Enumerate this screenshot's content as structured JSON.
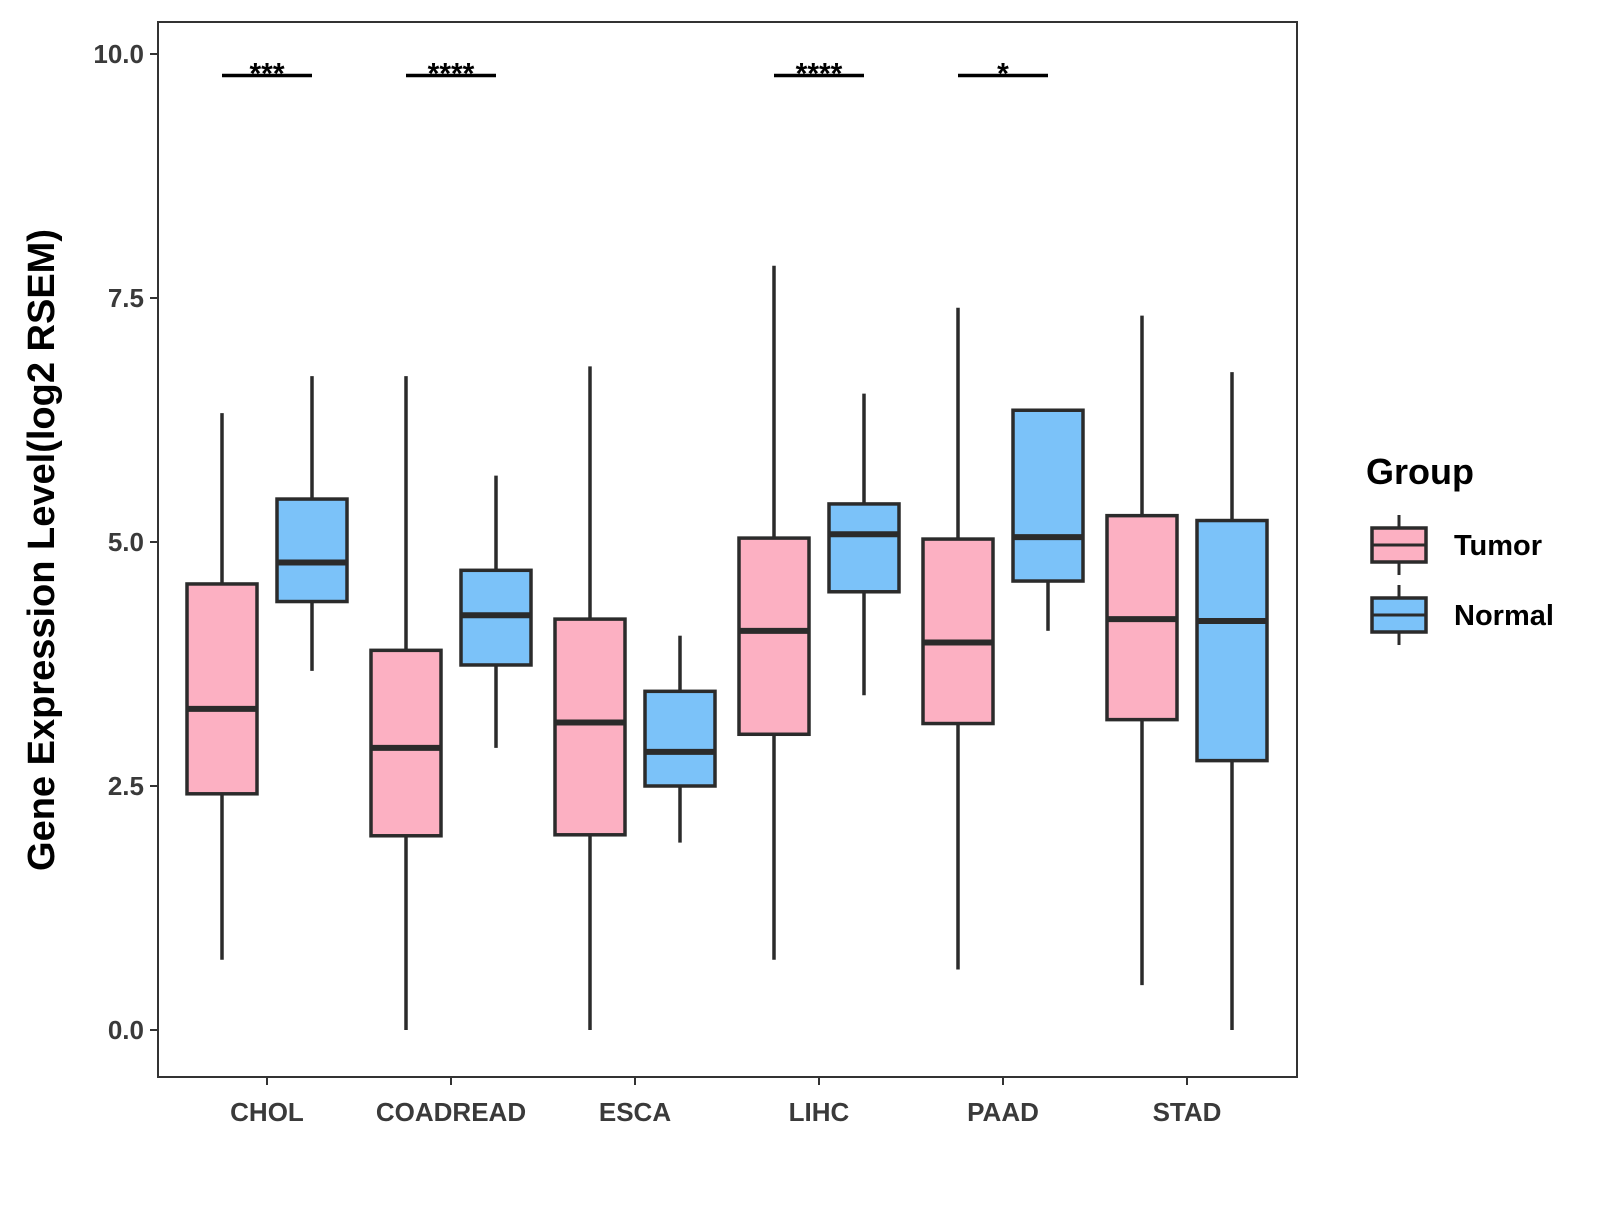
{
  "chart_data": {
    "type": "boxplot",
    "title": "",
    "xlabel": "",
    "ylabel": "Gene Expression Level(log2 RSEM)",
    "ylim": [
      -0.47,
      10.31
    ],
    "yticks": [
      "0.0",
      "2.5",
      "5.0",
      "7.5",
      "10.0"
    ],
    "ytick_values": [
      0,
      2.5,
      5,
      7.5,
      10
    ],
    "categories": [
      "CHOL",
      "COADREAD",
      "ESCA",
      "LIHC",
      "PAAD",
      "STAD"
    ],
    "legend": {
      "title": "Group",
      "position": "right",
      "entries": [
        {
          "name": "Tumor",
          "color": "#fcb0c2"
        },
        {
          "name": "Normal",
          "color": "#7bc2f9"
        }
      ]
    },
    "series": [
      {
        "name": "Tumor",
        "color": "#fcb0c2",
        "boxes": [
          {
            "category": "CHOL",
            "min": 0.72,
            "q1": 2.42,
            "median": 3.29,
            "q3": 4.57,
            "max": 6.32
          },
          {
            "category": "COADREAD",
            "min": 0.0,
            "q1": 1.99,
            "median": 2.89,
            "q3": 3.89,
            "max": 6.7
          },
          {
            "category": "ESCA",
            "min": 0.0,
            "q1": 2.0,
            "median": 3.15,
            "q3": 4.21,
            "max": 6.8
          },
          {
            "category": "LIHC",
            "min": 0.72,
            "q1": 3.03,
            "median": 4.09,
            "q3": 5.04,
            "max": 7.83
          },
          {
            "category": "PAAD",
            "min": 0.62,
            "q1": 3.14,
            "median": 3.97,
            "q3": 5.03,
            "max": 7.4
          },
          {
            "category": "STAD",
            "min": 0.46,
            "q1": 3.18,
            "median": 4.21,
            "q3": 5.27,
            "max": 7.32
          }
        ]
      },
      {
        "name": "Normal",
        "color": "#7bc2f9",
        "boxes": [
          {
            "category": "CHOL",
            "min": 3.68,
            "q1": 4.39,
            "median": 4.79,
            "q3": 5.44,
            "max": 6.7
          },
          {
            "category": "COADREAD",
            "min": 2.89,
            "q1": 3.74,
            "median": 4.25,
            "q3": 4.71,
            "max": 5.68
          },
          {
            "category": "ESCA",
            "min": 1.92,
            "q1": 2.5,
            "median": 2.85,
            "q3": 3.47,
            "max": 4.04
          },
          {
            "category": "LIHC",
            "min": 3.43,
            "q1": 4.49,
            "median": 5.08,
            "q3": 5.39,
            "max": 6.52
          },
          {
            "category": "PAAD",
            "min": 4.09,
            "q1": 4.6,
            "median": 5.05,
            "q3": 6.35,
            "max": 6.35
          },
          {
            "category": "STAD",
            "min": 0.0,
            "q1": 2.76,
            "median": 4.19,
            "q3": 5.22,
            "max": 6.74
          }
        ]
      }
    ],
    "significance": [
      {
        "category": "CHOL",
        "label": "***",
        "y": 9.78
      },
      {
        "category": "COADREAD",
        "label": "****",
        "y": 9.78
      },
      {
        "category": "LIHC",
        "label": "****",
        "y": 9.78
      },
      {
        "category": "PAAD",
        "label": "*",
        "y": 9.78
      }
    ]
  }
}
